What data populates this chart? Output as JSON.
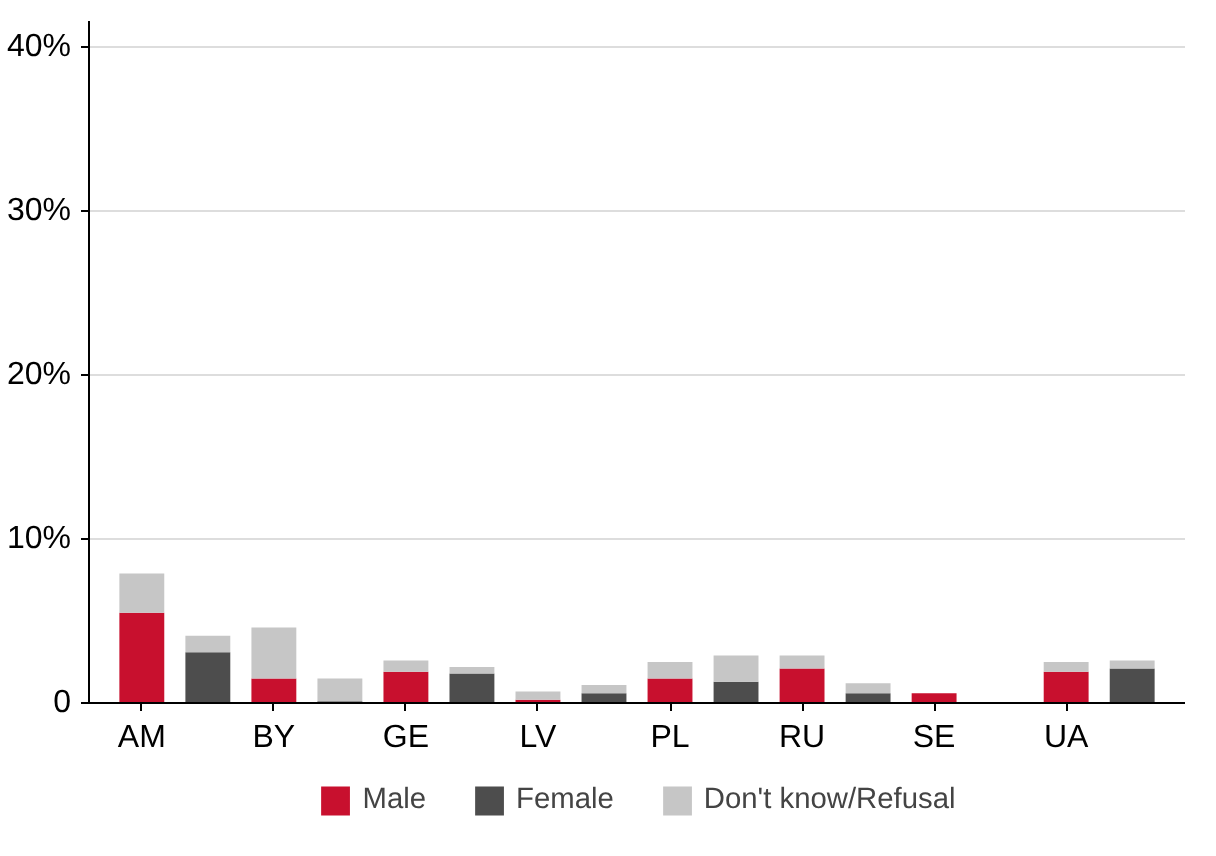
{
  "chart_data": {
    "type": "bar",
    "stacked": true,
    "categories": [
      "AM",
      null,
      "BY",
      null,
      "GE",
      null,
      "LV",
      null,
      "PL",
      null,
      "RU",
      null,
      "SE",
      null,
      "UA",
      null
    ],
    "series": [
      {
        "name": "Male",
        "color": "#c8102e",
        "values": [
          5.5,
          null,
          1.5,
          null,
          1.9,
          null,
          0.2,
          null,
          1.5,
          null,
          2.1,
          null,
          0.6,
          null,
          1.9,
          null
        ]
      },
      {
        "name": "Female",
        "color": "#4d4d4d",
        "values": [
          null,
          3.1,
          null,
          0.1,
          null,
          1.8,
          null,
          0.6,
          null,
          1.3,
          null,
          0.6,
          null,
          0,
          null,
          2.1
        ]
      },
      {
        "name": "Don't know/Refusal",
        "color": "#c6c6c6",
        "values": [
          2.4,
          1.0,
          3.1,
          1.4,
          0.7,
          0.4,
          0.5,
          0.5,
          1.0,
          1.6,
          0.8,
          0.6,
          0,
          0,
          0.6,
          0.5
        ]
      }
    ],
    "ylim": [
      0,
      41.6
    ],
    "yticks": [
      {
        "value": 0,
        "label": "0"
      },
      {
        "value": 10,
        "label": "10%"
      },
      {
        "value": 20,
        "label": "20%"
      },
      {
        "value": 30,
        "label": "30%"
      },
      {
        "value": 40,
        "label": "40%"
      }
    ],
    "grid": "y",
    "legend": "bottom"
  }
}
